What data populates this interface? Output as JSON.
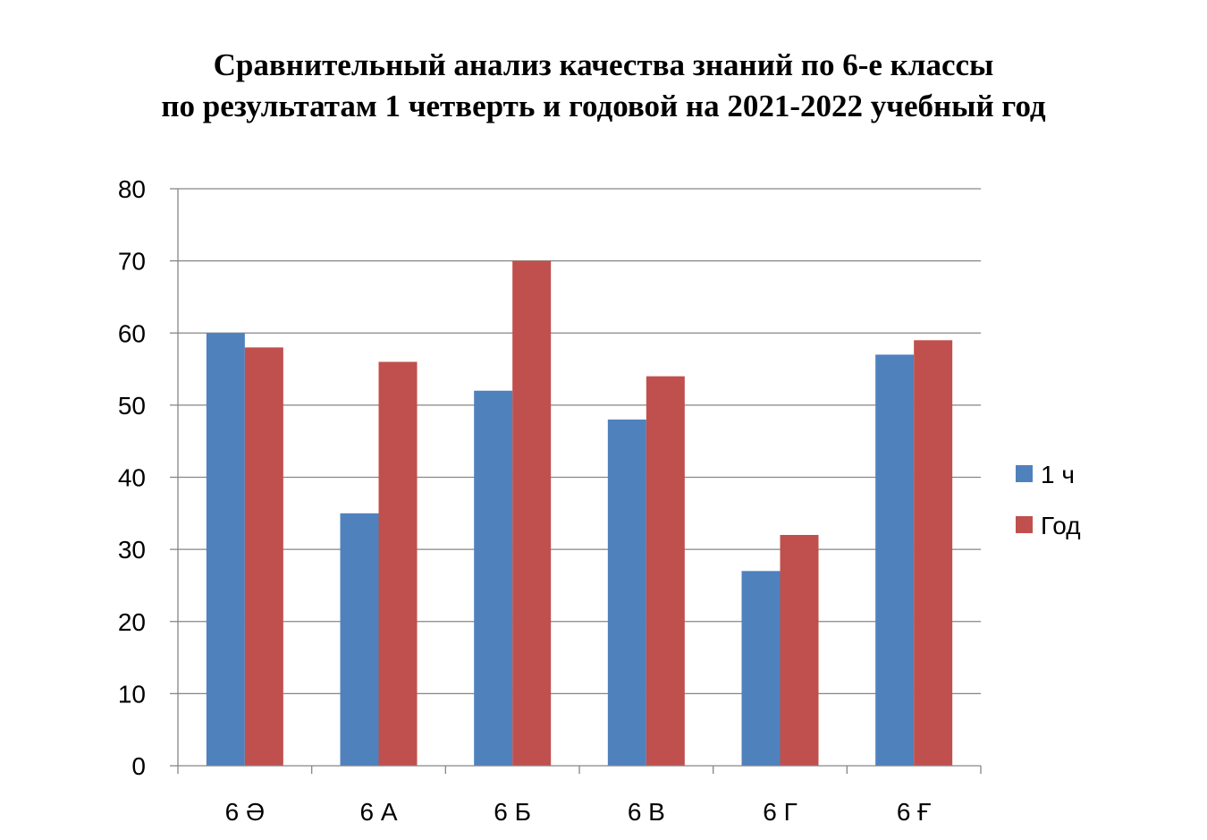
{
  "chart_data": {
    "type": "bar",
    "title_lines": [
      "Сравнительный анализ качества знаний по 6-е классы",
      "по результатам 1 четверть и годовой на  2021-2022 учебный год"
    ],
    "categories": [
      "6 Ə",
      "6 А",
      "6 Б",
      "6 В",
      "6 Г",
      "6 Ғ"
    ],
    "series": [
      {
        "name": "1 ч",
        "color": "#4F81BD",
        "values": [
          60,
          35,
          52,
          48,
          27,
          57
        ]
      },
      {
        "name": "Год",
        "color": "#C0504D",
        "values": [
          58,
          56,
          70,
          54,
          32,
          59
        ]
      }
    ],
    "ylim": [
      0,
      80
    ],
    "yticks": [
      0,
      10,
      20,
      30,
      40,
      50,
      60,
      70,
      80
    ],
    "grid": true,
    "legend": "right"
  }
}
